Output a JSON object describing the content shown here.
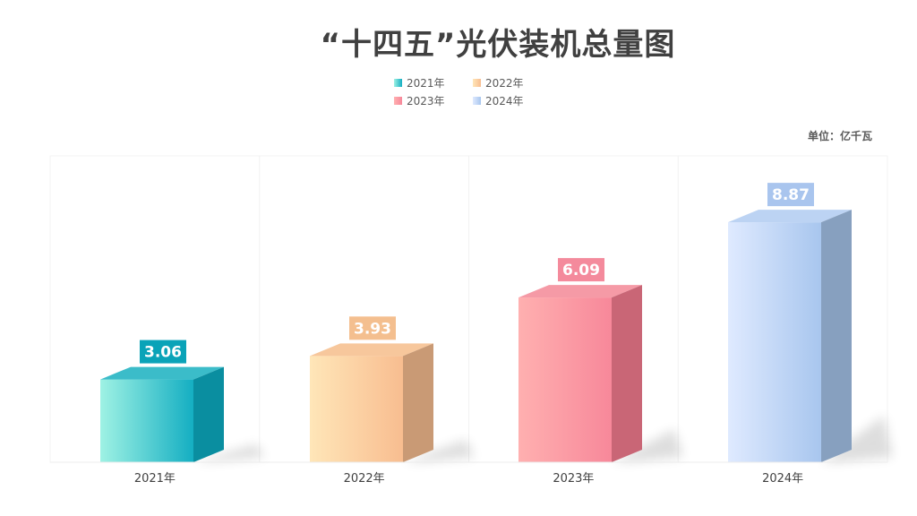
{
  "title": "“十四五”光伏装机总量图",
  "unit_label": "单位：亿千瓦",
  "chart_data": {
    "type": "bar",
    "categories": [
      "2021年",
      "2022年",
      "2023年",
      "2024年"
    ],
    "values": [
      3.06,
      3.93,
      6.09,
      8.87
    ],
    "value_labels": [
      "3.06",
      "3.93",
      "6.09",
      "8.87"
    ],
    "legend": [
      "2021年",
      "2022年",
      "2023年",
      "2024年"
    ],
    "legend_placement": "top-center",
    "ylim": [
      0,
      10
    ],
    "grid": false,
    "colors": {
      "2021年": {
        "front_light": "#9ff2e4",
        "front_dark": "#14aec2",
        "top": "#3bbcc9",
        "side": "#0a8ea0",
        "label_bg": "#0aa3b8"
      },
      "2022年": {
        "front_light": "#ffe6b8",
        "front_dark": "#f8bd90",
        "top": "#f7c79c",
        "side": "#c99a75",
        "label_bg": "#f4bf8f"
      },
      "2023年": {
        "front_light": "#ffb0b0",
        "front_dark": "#f7889a",
        "top": "#f59aa6",
        "side": "#c96676",
        "label_bg": "#f48a9c"
      },
      "2024年": {
        "front_light": "#dfeaff",
        "front_dark": "#a8c6ee",
        "top": "#bcd3f3",
        "side": "#87a0bf",
        "label_bg": "#a9c5ee"
      }
    }
  }
}
